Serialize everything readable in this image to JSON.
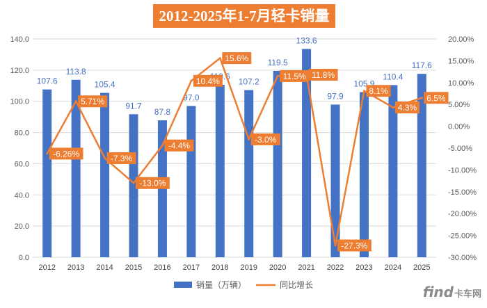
{
  "chart_data": {
    "type": "bar",
    "title": "2012-2025年1-7月轻卡销量",
    "categories": [
      "2012",
      "2013",
      "2014",
      "2015",
      "2016",
      "2017",
      "2018",
      "2019",
      "2020",
      "2021",
      "2022",
      "2023",
      "2024",
      "2025"
    ],
    "series": [
      {
        "name": "销量（万辆）",
        "type": "bar",
        "axis": "left",
        "values": [
          107.6,
          113.8,
          105.4,
          91.7,
          87.8,
          97.0,
          110.6,
          107.2,
          119.5,
          133.6,
          97.9,
          105.9,
          110.4,
          117.6
        ],
        "labels": [
          "107.6",
          "113.8",
          "105.4",
          "91.7",
          "87.8",
          "97.0",
          "110.6",
          "107.2",
          "119.5",
          "133.6",
          "97.9",
          "105.9",
          "110.4",
          "117.6"
        ],
        "color": "#4472C4"
      },
      {
        "name": "同比增长",
        "type": "line",
        "axis": "right",
        "values": [
          -6.26,
          5.71,
          -7.3,
          -13.0,
          -4.4,
          10.4,
          15.6,
          -3.0,
          11.5,
          11.8,
          -27.3,
          8.1,
          4.3,
          6.5
        ],
        "labels": [
          "-6.26%",
          "5.71%",
          "-7.3%",
          "-13.0%",
          "-4.4%",
          "10.4%",
          "15.6%",
          "-3.0%",
          "11.5%",
          "11.8%",
          "-27.3%",
          "8.1%",
          "4.3%",
          "6.5%"
        ],
        "color": "#ED7D31"
      }
    ],
    "ylim_left": [
      0,
      140
    ],
    "ylim_right": [
      -30,
      20
    ],
    "left_ticks": [
      "0.0",
      "20.0",
      "40.0",
      "60.0",
      "80.0",
      "100.0",
      "120.0",
      "140.0"
    ],
    "right_ticks": [
      "-30.00%",
      "-25.00%",
      "-20.00%",
      "-15.00%",
      "-10.00%",
      "-5.00%",
      "0.00%",
      "5.00%",
      "10.00%",
      "15.00%",
      "20.00%"
    ],
    "grid": true,
    "legend_position": "bottom"
  },
  "watermark": {
    "main": "find",
    "sub": "卡车网"
  }
}
